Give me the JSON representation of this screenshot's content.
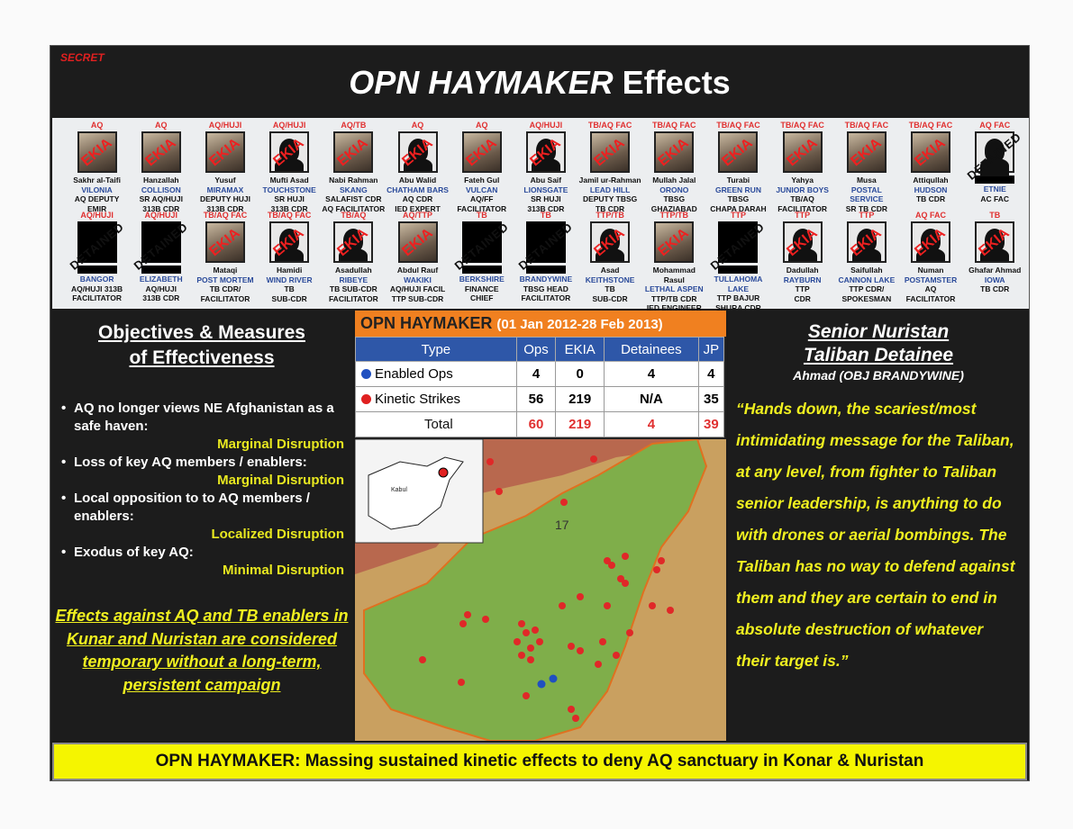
{
  "header": {
    "classification": "SECRET",
    "title_italic": "OPN HAYMAKER",
    "title_rest": "Effects"
  },
  "row1": [
    {
      "aff": "AQ",
      "name": "Sakhr al-Taifi",
      "code": "VILONIA",
      "role": [
        "AQ DEPUTY",
        "EMIR"
      ],
      "status": "EKIA",
      "photo": "pic"
    },
    {
      "aff": "AQ",
      "name": "Hanzallah",
      "code": "COLLISON",
      "role": [
        "SR AQ/HUJI",
        "313B CDR"
      ],
      "status": "EKIA",
      "photo": "pic"
    },
    {
      "aff": "AQ/HUJI",
      "name": "Yusuf",
      "code": "MIRAMAX",
      "role": [
        "DEPUTY HUJI",
        "313B CDR"
      ],
      "status": "EKIA",
      "photo": "pic"
    },
    {
      "aff": "AQ/HUJI",
      "name": "Mufti Asad",
      "code": "TOUCHSTONE",
      "role": [
        "SR HUJI",
        "313B CDR"
      ],
      "status": "EKIA",
      "photo": "sil"
    },
    {
      "aff": "AQ/TB",
      "name": "Nabi Rahman",
      "code": "SKANG",
      "role": [
        "SALAFIST CDR",
        "AQ FACILITATOR"
      ],
      "status": "EKIA",
      "photo": "pic"
    },
    {
      "aff": "AQ",
      "name": "Abu Walid",
      "code": "CHATHAM BARS",
      "role": [
        "AQ CDR",
        "IED EXPERT"
      ],
      "status": "EKIA",
      "photo": "sil"
    },
    {
      "aff": "AQ",
      "name": "Fateh Gul",
      "code": "VULCAN",
      "role": [
        "AQ/FF",
        "FACILITATOR"
      ],
      "status": "EKIA",
      "photo": "pic"
    },
    {
      "aff": "AQ/HUJI",
      "name": "Abu Saif",
      "code": "LIONSGATE",
      "role": [
        "SR HUJI",
        "313B CDR"
      ],
      "status": "EKIA",
      "photo": "sil"
    },
    {
      "aff": "TB/AQ FAC",
      "name": "Jamil ur-Rahman",
      "code": "LEAD HILL",
      "role": [
        "DEPUTY TBSG",
        "TB CDR"
      ],
      "status": "EKIA",
      "photo": "pic"
    },
    {
      "aff": "TB/AQ FAC",
      "name": "Mullah Jalal",
      "code": "ORONO",
      "role": [
        "TBSG",
        "GHAZIABAD"
      ],
      "status": "EKIA",
      "photo": "pic"
    },
    {
      "aff": "TB/AQ FAC",
      "name": "Turabi",
      "code": "GREEN RUN",
      "role": [
        "TBSG",
        "CHAPA DARAH"
      ],
      "status": "EKIA",
      "photo": "pic"
    },
    {
      "aff": "TB/AQ FAC",
      "name": "Yahya",
      "code": "JUNIOR BOYS",
      "role": [
        "TB/AQ",
        "FACILITATOR"
      ],
      "status": "EKIA",
      "photo": "pic"
    },
    {
      "aff": "TB/AQ FAC",
      "name": "Musa",
      "code": "POSTAL SERVICE",
      "role": [
        "SR TB CDR"
      ],
      "status": "EKIA",
      "photo": "pic"
    },
    {
      "aff": "TB/AQ FAC",
      "name": "Attiqullah",
      "code": "HUDSON",
      "role": [
        "TB CDR"
      ],
      "status": "EKIA",
      "photo": "pic"
    },
    {
      "aff": "AQ FAC",
      "name": "",
      "code": "ETNIE",
      "role": [
        "AC FAC"
      ],
      "status": "DETAINED",
      "photo": "sil"
    }
  ],
  "row2": [
    {
      "aff": "AQ/HUJI",
      "name": "",
      "code": "BANGOR",
      "role": [
        "AQ/HUJI 313B",
        "FACILITATOR"
      ],
      "status": "DETAINED",
      "photo": "red"
    },
    {
      "aff": "AQ/HUJI",
      "name": "",
      "code": "ELIZABETH",
      "role": [
        "AQ/HUJI",
        "313B CDR"
      ],
      "status": "DETAINED",
      "photo": "red"
    },
    {
      "aff": "TB/AQ FAC",
      "name": "Mataqi",
      "code": "POST MORTEM",
      "role": [
        "TB CDR/",
        "FACILITATOR"
      ],
      "status": "EKIA",
      "photo": "pic"
    },
    {
      "aff": "TB/AQ FAC",
      "name": "Hamidi",
      "code": "WIND RIVER",
      "role": [
        "TB",
        "SUB-CDR"
      ],
      "status": "EKIA",
      "photo": "sil"
    },
    {
      "aff": "TB/AQ",
      "name": "Asadullah",
      "code": "RIBEYE",
      "role": [
        "TB SUB-CDR",
        "FACILITATOR"
      ],
      "status": "EKIA",
      "photo": "sil"
    },
    {
      "aff": "AQ/TTP",
      "name": "Abdul Rauf",
      "code": "WAKIKI",
      "role": [
        "AQ/HUJI FACIL",
        "TTP SUB-CDR"
      ],
      "status": "EKIA",
      "photo": "pic"
    },
    {
      "aff": "TB",
      "name": "",
      "code": "BERKSHIRE",
      "role": [
        "FINANCE",
        "CHIEF"
      ],
      "status": "DETAINED",
      "photo": "red"
    },
    {
      "aff": "TB",
      "name": "",
      "code": "BRANDYWINE",
      "role": [
        "TBSG HEAD",
        "FACILITATOR"
      ],
      "status": "DETAINED",
      "photo": "red"
    },
    {
      "aff": "TTP/TB",
      "name": "Asad",
      "code": "KEITHSTONE",
      "role": [
        "TB",
        "SUB-CDR"
      ],
      "status": "EKIA",
      "photo": "sil"
    },
    {
      "aff": "TTP/TB",
      "name": "Mohammad Rasul",
      "code": "LETHAL ASPEN",
      "role": [
        "TTP/TB CDR",
        "IED ENGINEER"
      ],
      "status": "EKIA",
      "photo": "pic"
    },
    {
      "aff": "TTP",
      "name": "",
      "code": "TULLAHOMA LAKE",
      "role": [
        "TTP BAJUR",
        "SHURA CDR"
      ],
      "status": "DETAINED",
      "photo": "red"
    },
    {
      "aff": "TTP",
      "name": "Dadullah",
      "code": "RAYBURN",
      "role": [
        "TTP",
        "CDR"
      ],
      "status": "EKIA",
      "photo": "sil"
    },
    {
      "aff": "TTP",
      "name": "Saifullah",
      "code": "CANNON LAKE",
      "role": [
        "TTP CDR/",
        "SPOKESMAN"
      ],
      "status": "EKIA",
      "photo": "sil"
    },
    {
      "aff": "AQ FAC",
      "name": "Numan",
      "code": "POSTAMSTER",
      "role": [
        "AQ",
        "FACILITATOR"
      ],
      "status": "EKIA",
      "photo": "sil"
    },
    {
      "aff": "TB",
      "name": "Ghafar Ahmad",
      "code": "IOWA",
      "role": [
        "TB CDR"
      ],
      "status": "EKIA",
      "photo": "sil"
    }
  ],
  "objectives": {
    "heading1": "Objectives & Measures",
    "heading2": "of Effectiveness",
    "items": [
      {
        "text": "AQ no longer views NE Afghanistan as a safe haven:",
        "measure": "Marginal Disruption"
      },
      {
        "text": "Loss of key AQ members / enablers:",
        "measure": "Marginal Disruption"
      },
      {
        "text": "Local opposition to to AQ members / enablers:",
        "measure": "Localized Disruption"
      },
      {
        "text": "Exodus of key AQ:",
        "measure": "Minimal Disruption"
      }
    ],
    "conclusion": "Effects against AQ and TB enablers in Kunar and Nuristan are considered temporary without a long-term, persistent campaign"
  },
  "stats": {
    "title": "OPN HAYMAKER",
    "period": "(01 Jan 2012-28 Feb 2013)",
    "columns": [
      "Type",
      "Ops",
      "EKIA",
      "Detainees",
      "JP"
    ],
    "rows": [
      {
        "label": "Enabled Ops",
        "dot": "#2050c0",
        "values": [
          "4",
          "0",
          "4",
          "4"
        ]
      },
      {
        "label": "Kinetic Strikes",
        "dot": "#e02020",
        "values": [
          "56",
          "219",
          "N/A",
          "35"
        ]
      }
    ],
    "total": {
      "label": "Total",
      "values": [
        "60",
        "219",
        "4",
        "39"
      ]
    }
  },
  "map": {
    "inset_label": "Kabul",
    "grid_label": "17"
  },
  "detainee": {
    "heading1": "Senior Nuristan",
    "heading2": "Taliban Detainee",
    "subtitle": "Ahmad (OBJ BRANDYWINE)",
    "quote": "“Hands down, the scariest/most intimidating message for the Taliban, at any level, from fighter to Taliban senior leadership, is anything to do with drones or aerial bombings.  The Taliban has no way to defend against them and they are certain to end in absolute destruction of whatever their target is.”"
  },
  "footer": "OPN HAYMAKER: Massing sustained kinetic effects to deny AQ sanctuary in Konar & Nuristan"
}
